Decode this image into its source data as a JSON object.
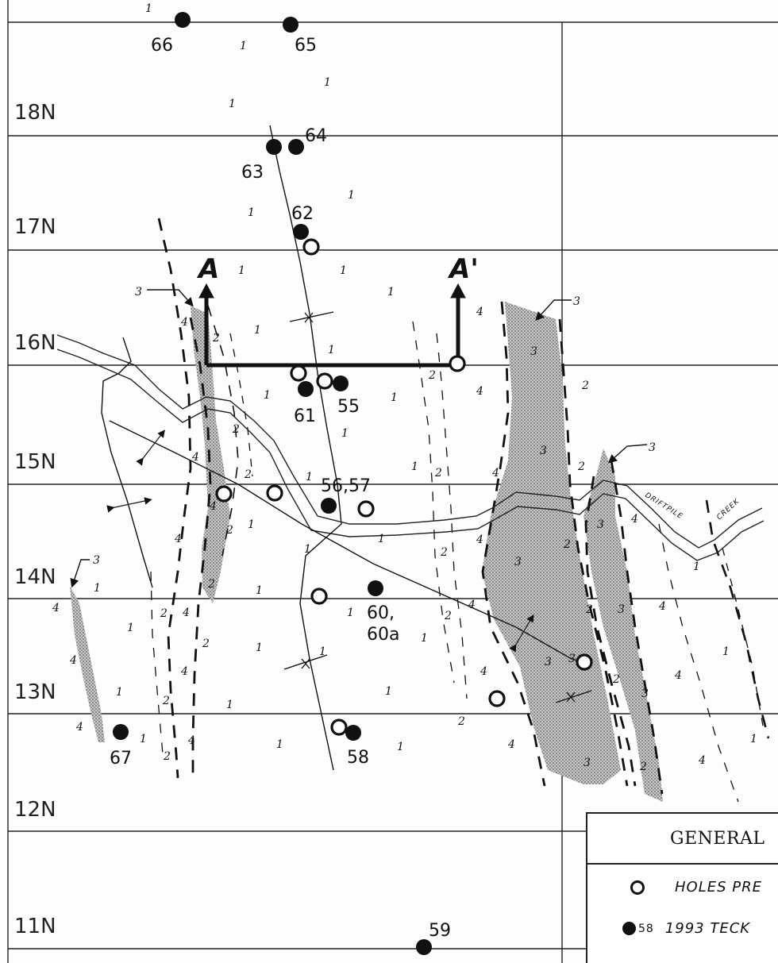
{
  "grid_labels": [
    "18N",
    "17N",
    "16N",
    "15N",
    "14N",
    "13N",
    "12N",
    "11N"
  ],
  "section": {
    "start": "A",
    "end": "A'"
  },
  "creek_name": [
    "DRIFTPILE",
    "CREEK"
  ],
  "unit_callout": "3",
  "holes_1993": [
    "66",
    "65",
    "64",
    "63",
    "62",
    "61",
    "55",
    "56,57",
    "60,",
    "60a",
    "58",
    "67",
    "59"
  ],
  "legend": {
    "title": "GENERAL",
    "rows": [
      {
        "symbol": "open-circle-icon",
        "text": "HOLES PRE"
      },
      {
        "symbol": "filled-circle-icon",
        "number": "58",
        "text": "1993 TECK"
      }
    ]
  },
  "colors": {
    "line": "#111111",
    "stipple": "#9a9a9a",
    "paper": "#fdfdfd"
  }
}
